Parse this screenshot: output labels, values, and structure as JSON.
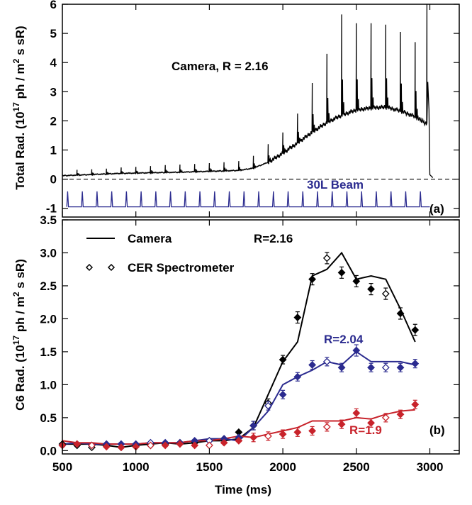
{
  "chart_data": [
    {
      "panel_label": "(a)",
      "type": "line",
      "ylabel": "Total Rad. (10",
      "ylabel_exp": "17",
      "ylabel_rest": " ph / m",
      "ylabel_sq": "2",
      "ylabel_end": " s sR)",
      "xlim": [
        500,
        3200
      ],
      "ylim": [
        -1.3,
        6.0
      ],
      "yticks": [
        "-1",
        "0",
        "1",
        "2",
        "3",
        "4",
        "5",
        "6"
      ],
      "ytick_values": [
        -1,
        0,
        1,
        2,
        3,
        4,
        5,
        6
      ],
      "annotations": {
        "camera": "Camera, R = 2.16",
        "beam": "30L Beam"
      },
      "colors": {
        "camera": "#000000",
        "beam": "#2b2b8f",
        "zero_line": "#000000"
      },
      "camera_baseline": [
        [
          500,
          0.12
        ],
        [
          700,
          0.16
        ],
        [
          900,
          0.2
        ],
        [
          1100,
          0.22
        ],
        [
          1300,
          0.24
        ],
        [
          1500,
          0.27
        ],
        [
          1700,
          0.3
        ],
        [
          1800,
          0.38
        ],
        [
          1900,
          0.58
        ],
        [
          2000,
          0.9
        ],
        [
          2100,
          1.25
        ],
        [
          2200,
          1.62
        ],
        [
          2300,
          1.95
        ],
        [
          2400,
          2.2
        ],
        [
          2500,
          2.38
        ],
        [
          2600,
          2.45
        ],
        [
          2700,
          2.48
        ],
        [
          2800,
          2.35
        ],
        [
          2900,
          2.15
        ],
        [
          2980,
          1.9
        ]
      ],
      "camera_spikes": [
        [
          600,
          0.32
        ],
        [
          700,
          0.34
        ],
        [
          800,
          0.36
        ],
        [
          900,
          0.4
        ],
        [
          1000,
          0.42
        ],
        [
          1100,
          0.45
        ],
        [
          1200,
          0.48
        ],
        [
          1300,
          0.5
        ],
        [
          1400,
          0.52
        ],
        [
          1500,
          0.55
        ],
        [
          1600,
          0.58
        ],
        [
          1700,
          0.62
        ],
        [
          1800,
          0.8
        ],
        [
          1900,
          1.2
        ],
        [
          2000,
          1.6
        ],
        [
          2100,
          2.25
        ],
        [
          2200,
          3.3
        ],
        [
          2300,
          4.3
        ],
        [
          2400,
          5.65
        ],
        [
          2500,
          5.35
        ],
        [
          2600,
          5.35
        ],
        [
          2700,
          5.3
        ],
        [
          2800,
          5.05
        ],
        [
          2900,
          4.7
        ],
        [
          2980,
          6.0
        ]
      ],
      "camera_drop": [
        [
          3000,
          0.15
        ],
        [
          3020,
          0.05
        ]
      ],
      "beam_pulses": {
        "start": 530,
        "step": 100,
        "end": 2930,
        "low": -0.95,
        "high": -0.42,
        "x_end": 3000
      }
    },
    {
      "panel_label": "(b)",
      "type": "line",
      "xlabel": "Time (ms)",
      "ylabel": "C6 Rad. (10",
      "ylabel_exp": "17",
      "ylabel_rest": " ph / m",
      "ylabel_sq": "2",
      "ylabel_end": " s sR)",
      "xlim": [
        500,
        3200
      ],
      "ylim": [
        -0.05,
        3.5
      ],
      "xticks": [
        "500",
        "1000",
        "1500",
        "2000",
        "2500",
        "3000"
      ],
      "xtick_values": [
        500,
        1000,
        1500,
        2000,
        2500,
        3000
      ],
      "yticks": [
        "0.0",
        "0.5",
        "1.0",
        "1.5",
        "2.0",
        "2.5",
        "3.0",
        "3.5"
      ],
      "ytick_values": [
        0.0,
        0.5,
        1.0,
        1.5,
        2.0,
        2.5,
        3.0,
        3.5
      ],
      "legend": {
        "camera": "Camera",
        "cer": "CER Spectrometer",
        "position": "top-left"
      },
      "r_labels": {
        "black": "R=2.16",
        "blue": "R=2.04",
        "red": "R=1.9"
      },
      "series": [
        {
          "name": "R=2.16",
          "color": "#000000",
          "camera": [
            [
              500,
              0.1
            ],
            [
              600,
              0.1
            ],
            [
              700,
              0.1
            ],
            [
              800,
              0.08
            ],
            [
              900,
              0.05
            ],
            [
              1000,
              0.08
            ],
            [
              1100,
              0.1
            ],
            [
              1200,
              0.12
            ],
            [
              1300,
              0.1
            ],
            [
              1400,
              0.12
            ],
            [
              1500,
              0.15
            ],
            [
              1600,
              0.15
            ],
            [
              1700,
              0.18
            ],
            [
              1800,
              0.35
            ],
            [
              1900,
              0.85
            ],
            [
              2000,
              1.35
            ],
            [
              2100,
              1.65
            ],
            [
              2200,
              2.65
            ],
            [
              2300,
              2.75
            ],
            [
              2400,
              3.0
            ],
            [
              2500,
              2.6
            ],
            [
              2600,
              2.65
            ],
            [
              2700,
              2.6
            ],
            [
              2800,
              2.15
            ],
            [
              2900,
              1.65
            ]
          ],
          "cer": [
            [
              500,
              0.1
            ],
            [
              600,
              0.08
            ],
            [
              700,
              0.05
            ],
            [
              800,
              0.08
            ],
            [
              900,
              0.05
            ],
            [
              1000,
              0.06
            ],
            [
              1100,
              0.08
            ],
            [
              1200,
              0.1
            ],
            [
              1300,
              0.12
            ],
            [
              1400,
              0.12
            ],
            [
              1500,
              0.15
            ],
            [
              1600,
              0.18
            ],
            [
              1700,
              0.28
            ],
            [
              1800,
              0.38
            ],
            [
              1900,
              0.72
            ],
            [
              2000,
              1.38
            ],
            [
              2100,
              2.02
            ],
            [
              2200,
              2.6
            ],
            [
              2300,
              2.92
            ],
            [
              2400,
              2.7
            ],
            [
              2500,
              2.57
            ],
            [
              2600,
              2.45
            ],
            [
              2700,
              2.38
            ],
            [
              2800,
              2.08
            ],
            [
              2900,
              1.83
            ]
          ]
        },
        {
          "name": "R=2.04",
          "color": "#2b2b8f",
          "camera": [
            [
              500,
              0.1
            ],
            [
              600,
              0.12
            ],
            [
              700,
              0.1
            ],
            [
              800,
              0.1
            ],
            [
              900,
              0.1
            ],
            [
              1000,
              0.1
            ],
            [
              1100,
              0.12
            ],
            [
              1200,
              0.12
            ],
            [
              1300,
              0.12
            ],
            [
              1400,
              0.15
            ],
            [
              1500,
              0.18
            ],
            [
              1600,
              0.18
            ],
            [
              1700,
              0.15
            ],
            [
              1800,
              0.35
            ],
            [
              1900,
              0.6
            ],
            [
              2000,
              1.0
            ],
            [
              2100,
              1.12
            ],
            [
              2200,
              1.22
            ],
            [
              2300,
              1.35
            ],
            [
              2400,
              1.3
            ],
            [
              2500,
              1.5
            ],
            [
              2600,
              1.35
            ],
            [
              2700,
              1.35
            ],
            [
              2800,
              1.35
            ],
            [
              2900,
              1.3
            ]
          ],
          "cer": [
            [
              500,
              0.08
            ],
            [
              600,
              0.1
            ],
            [
              700,
              0.08
            ],
            [
              800,
              0.1
            ],
            [
              900,
              0.1
            ],
            [
              1000,
              0.1
            ],
            [
              1100,
              0.12
            ],
            [
              1200,
              0.12
            ],
            [
              1300,
              0.12
            ],
            [
              1400,
              0.15
            ],
            [
              1500,
              0.15
            ],
            [
              1600,
              0.18
            ],
            [
              1700,
              0.2
            ],
            [
              1800,
              0.38
            ],
            [
              1900,
              0.68
            ],
            [
              2000,
              0.85
            ],
            [
              2100,
              1.12
            ],
            [
              2200,
              1.3
            ],
            [
              2300,
              1.35
            ],
            [
              2400,
              1.26
            ],
            [
              2500,
              1.52
            ],
            [
              2600,
              1.26
            ],
            [
              2700,
              1.26
            ],
            [
              2800,
              1.26
            ],
            [
              2900,
              1.32
            ]
          ]
        },
        {
          "name": "R=1.9",
          "color": "#c8232b",
          "camera": [
            [
              500,
              0.15
            ],
            [
              600,
              0.12
            ],
            [
              700,
              0.12
            ],
            [
              800,
              0.1
            ],
            [
              900,
              0.1
            ],
            [
              1000,
              0.1
            ],
            [
              1100,
              0.12
            ],
            [
              1200,
              0.12
            ],
            [
              1300,
              0.12
            ],
            [
              1400,
              0.15
            ],
            [
              1500,
              0.15
            ],
            [
              1600,
              0.18
            ],
            [
              1700,
              0.22
            ],
            [
              1800,
              0.2
            ],
            [
              1900,
              0.25
            ],
            [
              2000,
              0.3
            ],
            [
              2100,
              0.35
            ],
            [
              2200,
              0.45
            ],
            [
              2300,
              0.45
            ],
            [
              2400,
              0.45
            ],
            [
              2500,
              0.5
            ],
            [
              2600,
              0.48
            ],
            [
              2700,
              0.55
            ],
            [
              2800,
              0.6
            ],
            [
              2900,
              0.62
            ]
          ],
          "cer": [
            [
              500,
              0.08
            ],
            [
              600,
              0.1
            ],
            [
              700,
              0.08
            ],
            [
              800,
              0.06
            ],
            [
              900,
              0.05
            ],
            [
              1000,
              0.06
            ],
            [
              1100,
              0.08
            ],
            [
              1200,
              0.08
            ],
            [
              1300,
              0.1
            ],
            [
              1400,
              0.08
            ],
            [
              1500,
              0.08
            ],
            [
              1600,
              0.12
            ],
            [
              1700,
              0.15
            ],
            [
              1800,
              0.2
            ],
            [
              1900,
              0.22
            ],
            [
              2000,
              0.25
            ],
            [
              2100,
              0.28
            ],
            [
              2200,
              0.3
            ],
            [
              2300,
              0.36
            ],
            [
              2400,
              0.4
            ],
            [
              2500,
              0.57
            ],
            [
              2600,
              0.42
            ],
            [
              2700,
              0.5
            ],
            [
              2800,
              0.55
            ],
            [
              2900,
              0.7
            ]
          ]
        }
      ]
    }
  ]
}
